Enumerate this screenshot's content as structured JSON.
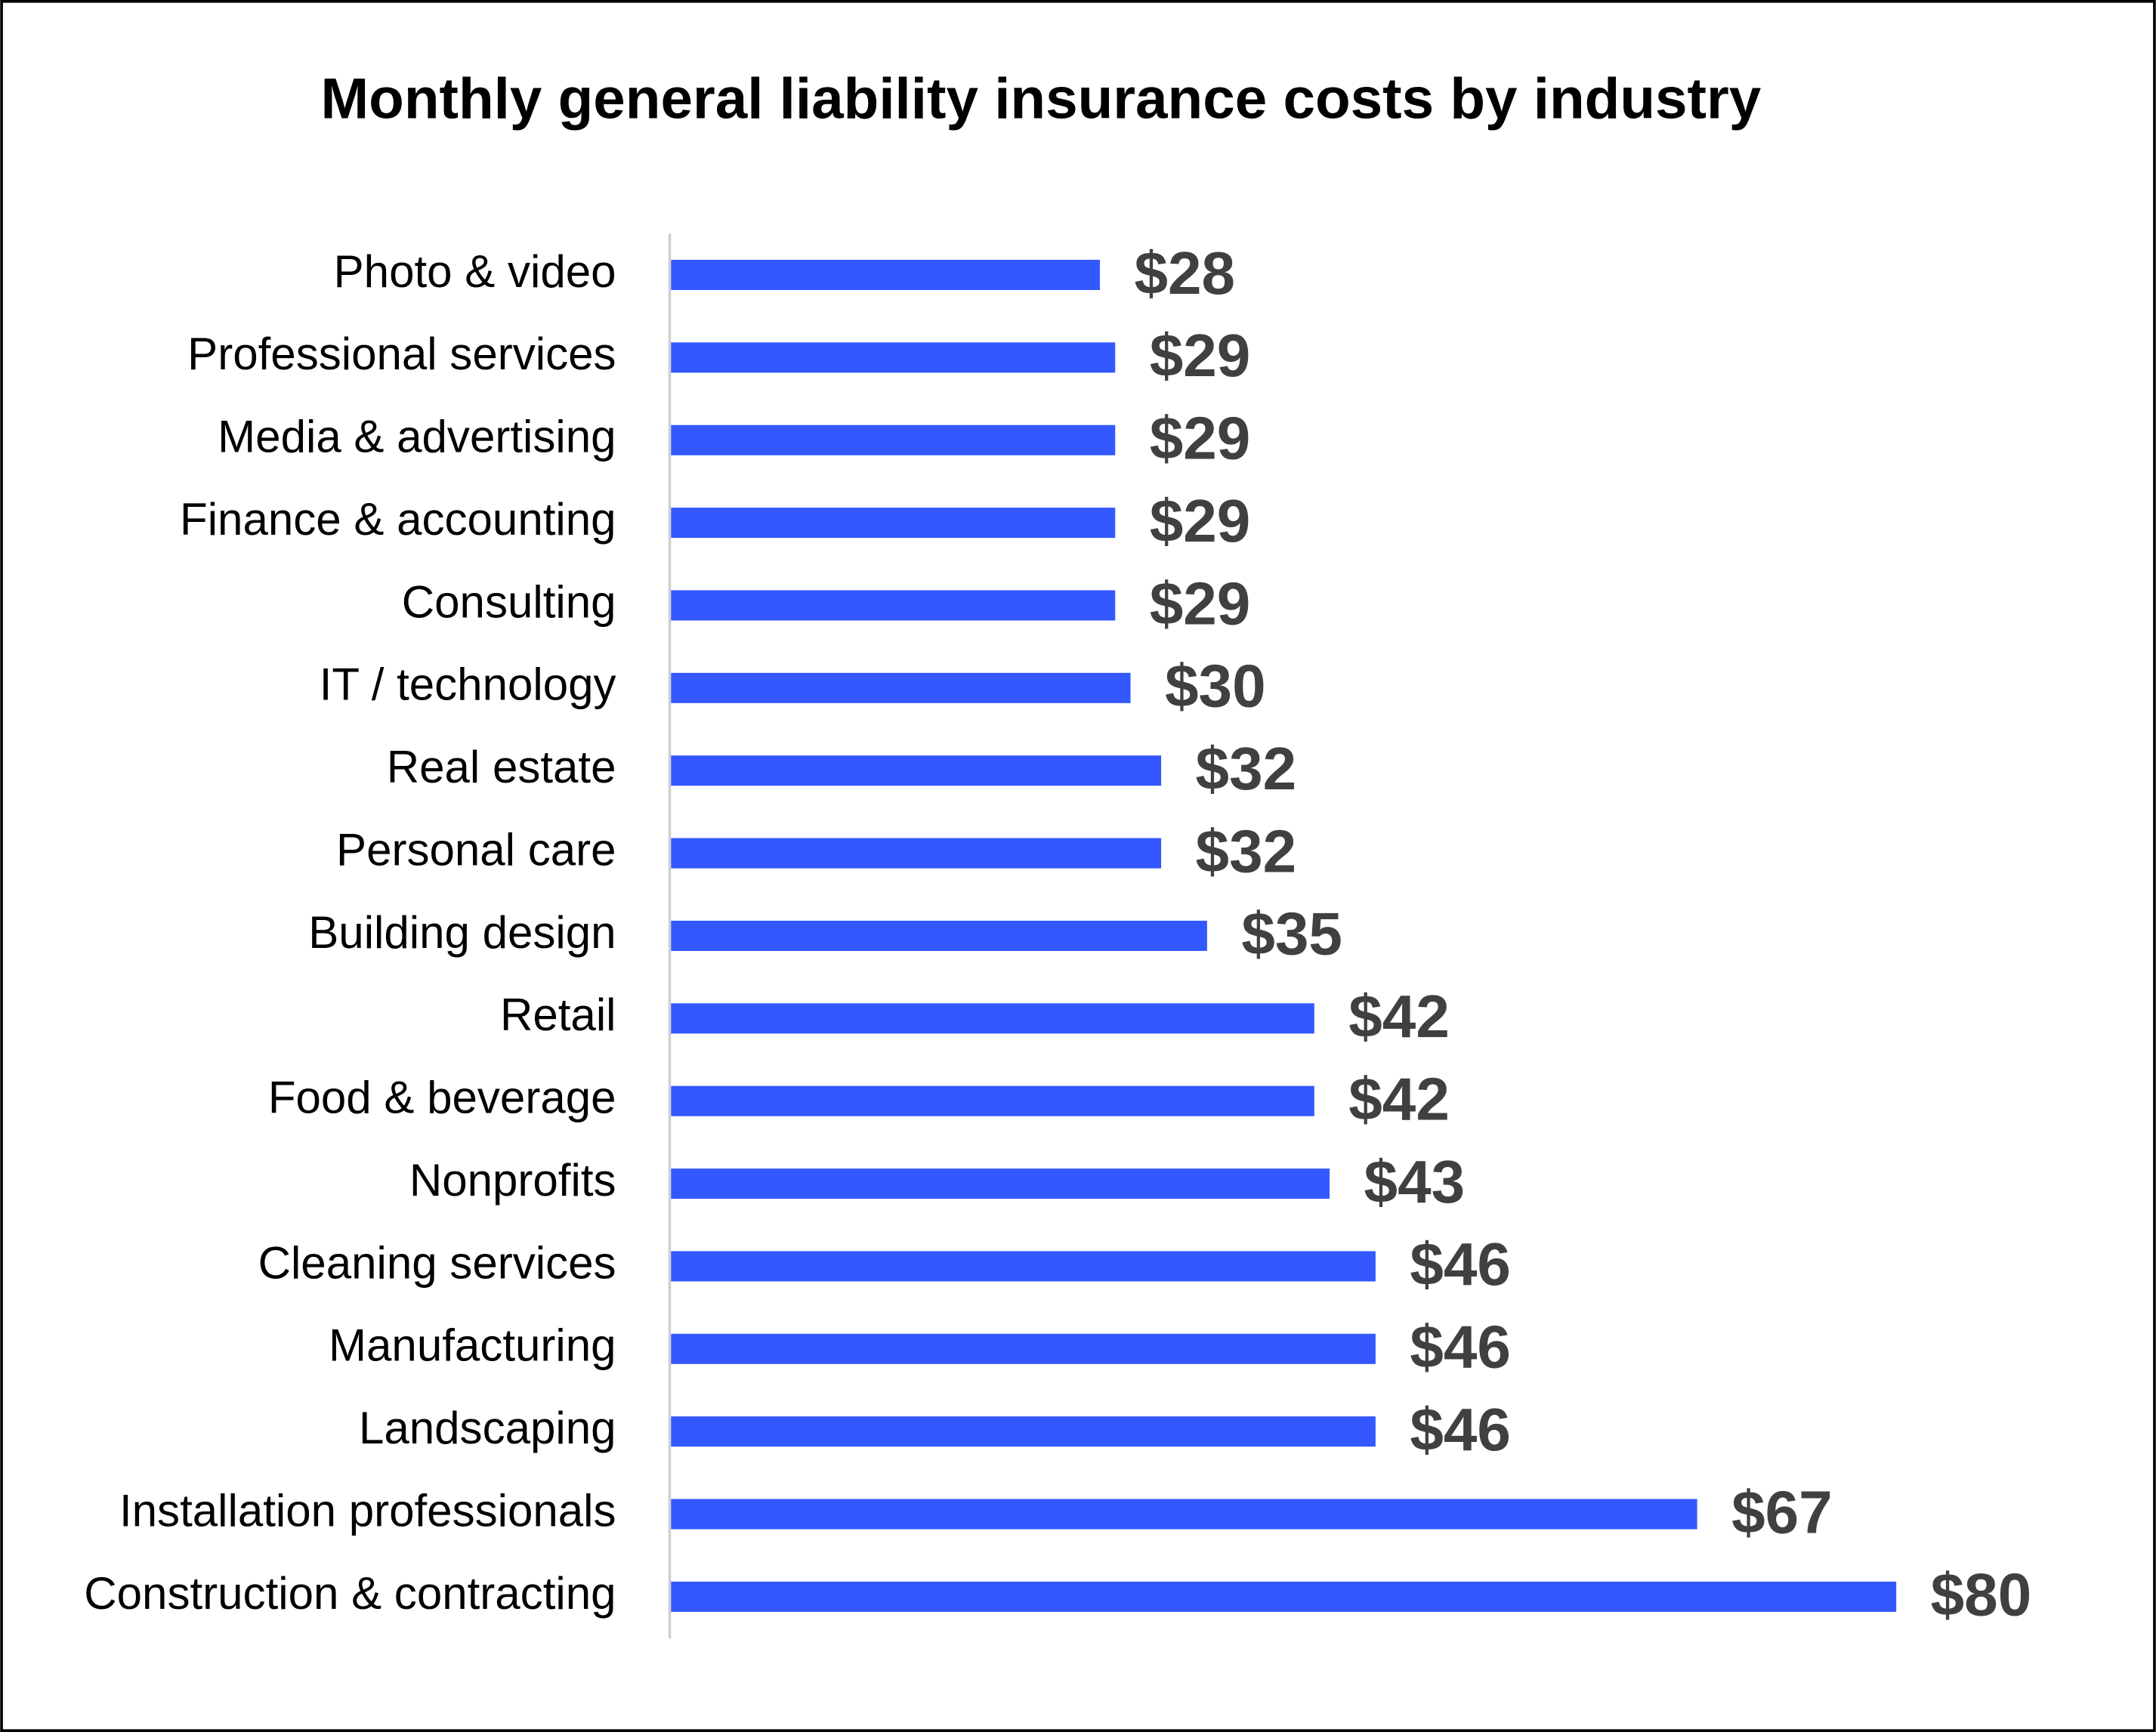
{
  "chart_data": {
    "type": "hbar",
    "title": "Monthly general liability insurance costs by industry",
    "categories": [
      "Photo & video",
      "Professional services",
      "Media & advertising",
      "Finance & accounting",
      "Consulting",
      "IT / technology",
      "Real estate",
      "Personal care",
      "Building design",
      "Retail",
      "Food & beverage",
      "Nonprofits",
      "Cleaning services",
      "Manufacturing",
      "Landscaping",
      "Installation professionals",
      "Construction & contracting"
    ],
    "values": [
      28,
      29,
      29,
      29,
      29,
      30,
      32,
      32,
      35,
      42,
      42,
      43,
      46,
      46,
      46,
      67,
      80
    ],
    "value_labels": [
      "$28",
      "$29",
      "$29",
      "$29",
      "$29",
      "$30",
      "$32",
      "$32",
      "$35",
      "$42",
      "$42",
      "$43",
      "$46",
      "$46",
      "$46",
      "$67",
      "$80"
    ],
    "color": "#3358ff"
  }
}
